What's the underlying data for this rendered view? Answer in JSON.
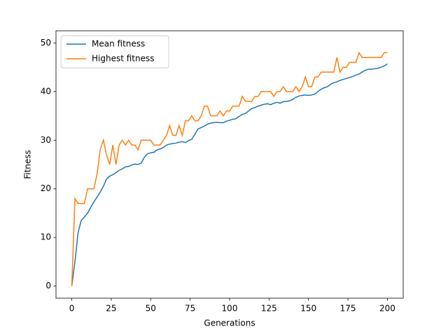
{
  "chart_data": {
    "type": "line",
    "xlabel": "Generations",
    "ylabel": "Fitness",
    "x": [
      0,
      2,
      4,
      6,
      8,
      10,
      12,
      14,
      16,
      18,
      20,
      22,
      24,
      26,
      28,
      30,
      32,
      34,
      36,
      38,
      40,
      42,
      44,
      46,
      48,
      50,
      52,
      54,
      56,
      58,
      60,
      62,
      64,
      66,
      68,
      70,
      72,
      74,
      76,
      78,
      80,
      82,
      84,
      86,
      88,
      90,
      92,
      94,
      96,
      98,
      100,
      102,
      104,
      106,
      108,
      110,
      112,
      114,
      116,
      118,
      120,
      122,
      124,
      126,
      128,
      130,
      132,
      134,
      136,
      138,
      140,
      142,
      144,
      146,
      148,
      150,
      152,
      154,
      156,
      158,
      160,
      162,
      164,
      166,
      168,
      170,
      172,
      174,
      176,
      178,
      180,
      182,
      184,
      186,
      188,
      190,
      192,
      194,
      196,
      198,
      200
    ],
    "series": [
      {
        "name": "Mean fitness",
        "color": "#1f77b4",
        "values": [
          0,
          5,
          11,
          13.5,
          14.2,
          15,
          16.2,
          17.3,
          18.3,
          19.3,
          20.5,
          22,
          22.6,
          22.9,
          23.3,
          23.8,
          24.1,
          24.5,
          24.6,
          24.9,
          25.1,
          25,
          25.3,
          26.5,
          27.2,
          27.4,
          27.5,
          28,
          28.2,
          28.5,
          29,
          29.2,
          29.3,
          29.4,
          29.6,
          29.7,
          29.5,
          29.9,
          30.2,
          31.2,
          32.3,
          32.6,
          32.9,
          33.3,
          33.5,
          33.6,
          33.7,
          33.6,
          33.6,
          33.9,
          34.1,
          34.3,
          34.4,
          34.9,
          35.3,
          35.5,
          36,
          36.5,
          36.7,
          37,
          37.2,
          37.4,
          37.5,
          37.3,
          37.6,
          37.8,
          37.6,
          37.9,
          38,
          38.1,
          38.4,
          38.8,
          39.1,
          39.2,
          39.3,
          39.2,
          39.3,
          39.5,
          40,
          40.5,
          40.8,
          41,
          41.5,
          41.8,
          42,
          42.3,
          42.5,
          42.7,
          42.9,
          43.1,
          43.4,
          43.6,
          44,
          44.4,
          44.6,
          44.6,
          44.7,
          44.8,
          45,
          45.3,
          45.7
        ]
      },
      {
        "name": "Highest fitness",
        "color": "#ff7f0e",
        "values": [
          0,
          18,
          17,
          17,
          17,
          20,
          20,
          20,
          23,
          28,
          30,
          27,
          25,
          29,
          25,
          29,
          30,
          29,
          30,
          29,
          29,
          28,
          30,
          30,
          30,
          30,
          29,
          29,
          29,
          30,
          31,
          33,
          31,
          31,
          33,
          31,
          34,
          34,
          35,
          34,
          34,
          35,
          37,
          37,
          35,
          35,
          35,
          36,
          35,
          36,
          36,
          37,
          37,
          37,
          39,
          38,
          38,
          38,
          39,
          39,
          40,
          40,
          40,
          40,
          39,
          40,
          40,
          41,
          40,
          40,
          40,
          41,
          40,
          41,
          43,
          41,
          41,
          43,
          43,
          44,
          44,
          44,
          44,
          44,
          47,
          44,
          45,
          45,
          46,
          46,
          46,
          48,
          47,
          47,
          47,
          47,
          47,
          47,
          47,
          48,
          48
        ]
      }
    ],
    "xlim": [
      -10,
      210
    ],
    "ylim": [
      -2.5,
      52.5
    ],
    "xticks": [
      0,
      25,
      50,
      75,
      100,
      125,
      150,
      175,
      200
    ],
    "yticks": [
      0,
      10,
      20,
      30,
      40,
      50
    ],
    "legend": "upper left"
  }
}
